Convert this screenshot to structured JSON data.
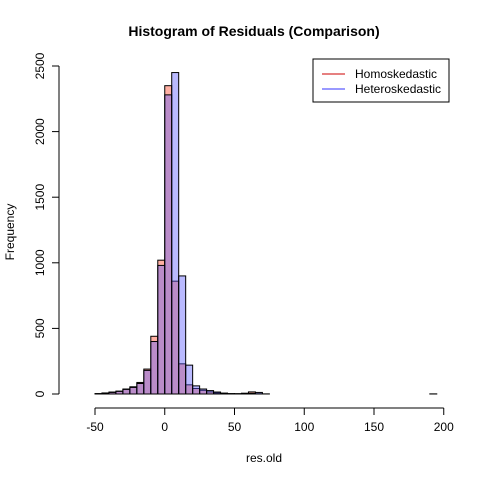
{
  "chart_data": {
    "type": "bar",
    "title": "Histogram of Residuals (Comparison)",
    "xlabel": "res.old",
    "ylabel": "Frequency",
    "xlim": [
      -60,
      195
    ],
    "ylim": [
      0,
      2500
    ],
    "xticks": [
      -50,
      0,
      50,
      100,
      150,
      200
    ],
    "yticks": [
      0,
      500,
      1000,
      1500,
      2000,
      2500
    ],
    "bin_width": 5,
    "bin_starts": [
      -50,
      -45,
      -40,
      -35,
      -30,
      -25,
      -20,
      -15,
      -10,
      -5,
      0,
      5,
      10,
      15,
      20,
      25,
      30,
      35,
      40,
      45,
      50,
      55,
      60,
      65,
      70,
      75,
      80,
      85,
      90,
      95,
      100,
      105,
      110,
      115,
      120,
      125,
      130,
      135,
      140,
      145,
      150,
      155,
      160,
      165,
      170,
      175,
      180,
      185,
      190
    ],
    "series": [
      {
        "name": "Homoskedastic",
        "fill": "rgba(255,80,50,0.45)",
        "line_color": "#cc0000",
        "values": [
          3,
          8,
          15,
          22,
          38,
          55,
          88,
          190,
          440,
          1020,
          2350,
          860,
          230,
          70,
          42,
          28,
          16,
          8,
          4,
          2,
          2,
          6,
          16,
          2,
          0,
          0,
          0,
          0,
          0,
          0,
          0,
          0,
          0,
          0,
          0,
          0,
          0,
          0,
          0,
          0,
          0,
          0,
          0,
          0,
          0,
          0,
          0,
          0,
          1
        ]
      },
      {
        "name": "Heteroskedastic",
        "fill": "rgba(90,90,255,0.42)",
        "line_color": "#3333ff",
        "values": [
          2,
          7,
          12,
          20,
          35,
          50,
          80,
          180,
          400,
          980,
          2280,
          2450,
          900,
          220,
          62,
          38,
          26,
          15,
          7,
          3,
          2,
          2,
          5,
          12,
          1,
          0,
          0,
          0,
          0,
          0,
          0,
          0,
          0,
          0,
          0,
          0,
          0,
          0,
          0,
          0,
          0,
          0,
          0,
          0,
          0,
          0,
          0,
          0,
          0
        ]
      }
    ],
    "legend": {
      "position": "top-right",
      "entries": [
        "Homoskedastic",
        "Heteroskedastic"
      ]
    }
  }
}
